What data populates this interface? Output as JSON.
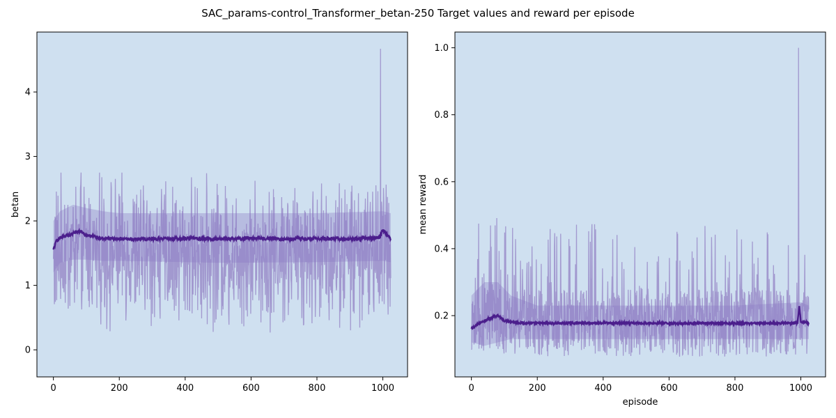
{
  "suptitle": "SAC_params-control_Transformer_betan-250 Target values and reward per episode",
  "colors": {
    "plot_background": "#cfe0f0",
    "raw_line": "#9a8cc9",
    "band": "#8a78c2",
    "mean_line": "#4b1e8c"
  },
  "chart_data": [
    {
      "type": "line",
      "xlabel": "",
      "ylabel": "betan",
      "xlim": [
        -50,
        1075
      ],
      "ylim": [
        -0.42,
        4.93
      ],
      "xticks": [
        0,
        200,
        400,
        600,
        800,
        1000
      ],
      "yticks": [
        0,
        1,
        2,
        3,
        4
      ],
      "grid": false,
      "n_episodes": 1025,
      "raw_range": [
        -0.17,
        2.75
      ],
      "spikes": [
        {
          "x": 993,
          "y": 4.67
        }
      ],
      "series": [
        {
          "role": "raw",
          "x_sample": [
            0,
            15,
            35,
            60,
            100,
            200,
            400,
            600,
            800,
            1000,
            1023
          ],
          "y_sample": [
            1.55,
            2.3,
            2.75,
            1.1,
            1.9,
            2.5,
            0.2,
            2.6,
            1.3,
            0.07,
            1.4
          ]
        },
        {
          "role": "rolling_mean",
          "x": [
            0,
            10,
            30,
            60,
            80,
            100,
            150,
            200,
            300,
            400,
            500,
            600,
            700,
            800,
            900,
            990,
            1000,
            1023
          ],
          "y": [
            1.55,
            1.7,
            1.75,
            1.8,
            1.84,
            1.78,
            1.73,
            1.72,
            1.72,
            1.73,
            1.72,
            1.73,
            1.72,
            1.73,
            1.72,
            1.74,
            1.86,
            1.72
          ]
        },
        {
          "role": "std_band",
          "x": [
            0,
            20,
            60,
            100,
            150,
            200,
            500,
            800,
            1000,
            1023
          ],
          "upper": [
            2.0,
            2.15,
            2.25,
            2.2,
            2.15,
            2.12,
            2.12,
            2.12,
            2.15,
            2.12
          ],
          "lower": [
            1.2,
            1.35,
            1.4,
            1.4,
            1.38,
            1.38,
            1.35,
            1.36,
            1.38,
            1.36
          ]
        }
      ]
    },
    {
      "type": "line",
      "xlabel": "episode",
      "ylabel": "mean reward",
      "xlim": [
        -50,
        1075
      ],
      "ylim": [
        0.017,
        1.047
      ],
      "xticks": [
        0,
        200,
        400,
        600,
        800,
        1000
      ],
      "yticks": [
        0.2,
        0.4,
        0.6,
        0.8,
        1.0
      ],
      "grid": false,
      "n_episodes": 1025,
      "raw_range": [
        0.055,
        0.53
      ],
      "spikes": [
        {
          "x": 993,
          "y": 1.0
        }
      ],
      "series": [
        {
          "role": "raw",
          "x_sample": [
            0,
            35,
            100,
            200,
            260,
            400,
            480,
            520,
            700,
            900,
            1000,
            1023
          ],
          "y_sample": [
            0.16,
            0.53,
            0.14,
            0.25,
            0.45,
            0.1,
            0.49,
            0.51,
            0.08,
            0.3,
            0.07,
            0.18
          ]
        },
        {
          "role": "rolling_mean",
          "x": [
            0,
            20,
            50,
            80,
            100,
            150,
            200,
            400,
            600,
            800,
            990,
            995,
            1000,
            1023
          ],
          "y": [
            0.16,
            0.175,
            0.19,
            0.2,
            0.185,
            0.178,
            0.177,
            0.178,
            0.177,
            0.177,
            0.178,
            0.23,
            0.18,
            0.178
          ]
        },
        {
          "role": "std_band",
          "x": [
            0,
            40,
            80,
            120,
            200,
            500,
            800,
            1000,
            1023
          ],
          "upper": [
            0.26,
            0.3,
            0.3,
            0.26,
            0.23,
            0.23,
            0.23,
            0.24,
            0.23
          ],
          "lower": [
            0.12,
            0.11,
            0.12,
            0.13,
            0.13,
            0.13,
            0.13,
            0.13,
            0.13
          ]
        }
      ]
    }
  ]
}
